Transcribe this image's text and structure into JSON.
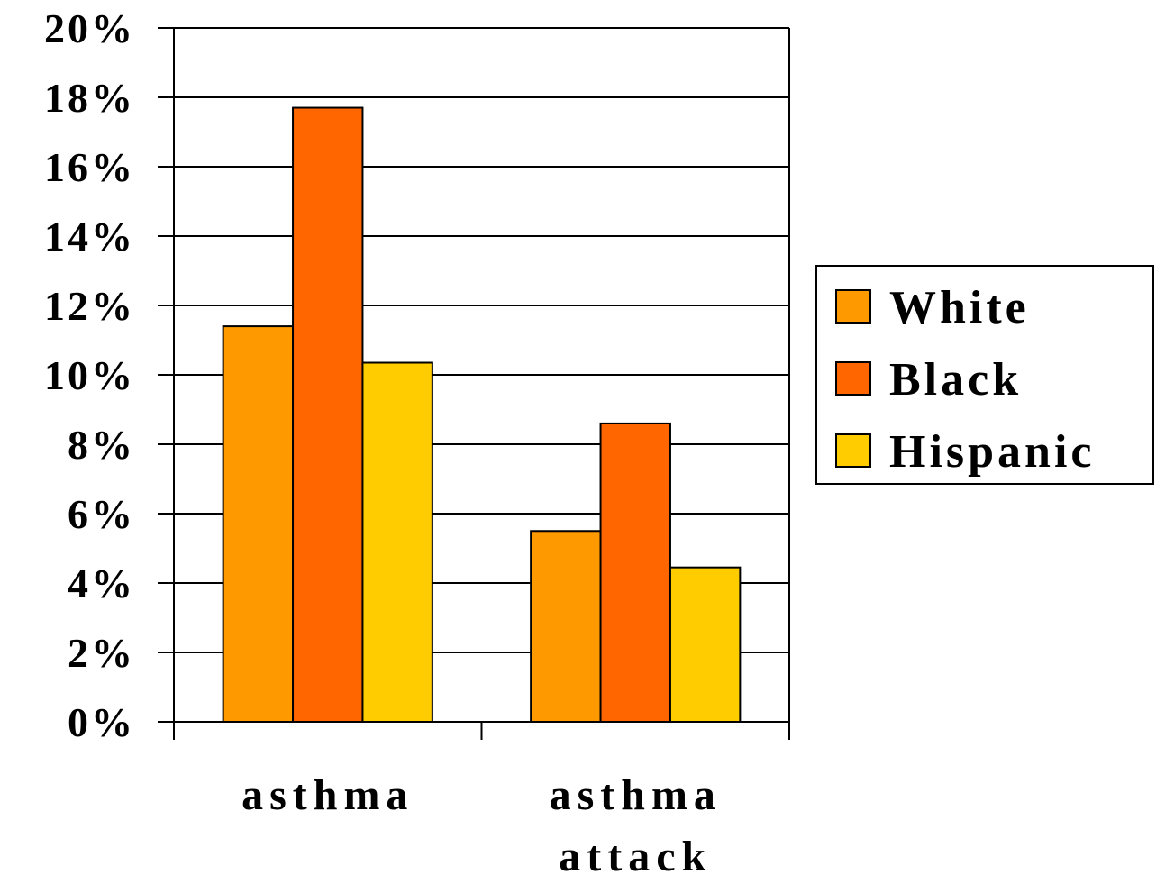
{
  "chart_data": {
    "type": "bar",
    "categories": [
      [
        "asthma"
      ],
      [
        "asthma",
        "attack"
      ]
    ],
    "series": [
      {
        "name": "White",
        "color": "#FF9900",
        "values": [
          11.4,
          5.5
        ]
      },
      {
        "name": "Black",
        "color": "#FF6600",
        "values": [
          17.7,
          8.6
        ]
      },
      {
        "name": "Hispanic",
        "color": "#FFCC00",
        "values": [
          10.35,
          4.45
        ]
      }
    ],
    "yticks": [
      "0%",
      "2%",
      "4%",
      "6%",
      "8%",
      "10%",
      "12%",
      "14%",
      "16%",
      "18%",
      "20%"
    ],
    "ylim": [
      0,
      20
    ],
    "grid": true,
    "legend_position": "right"
  }
}
